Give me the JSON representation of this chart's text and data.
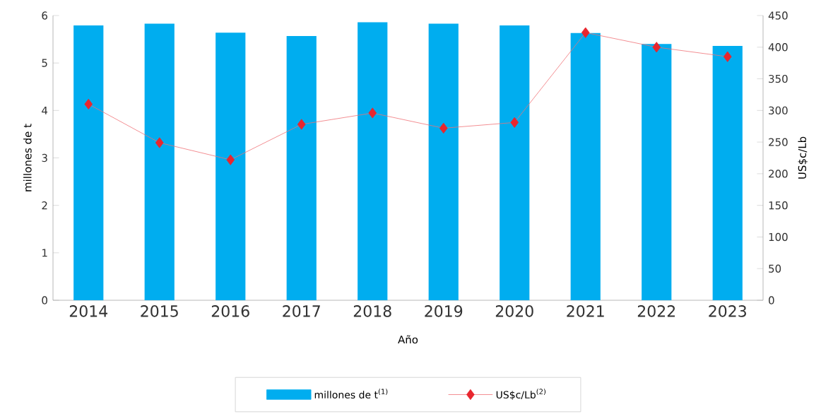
{
  "chart_data": {
    "type": "bar",
    "xlabel": "Año",
    "ylabel": "millones de t",
    "y2label": "US$c/Lb",
    "categories": [
      "2014",
      "2015",
      "2016",
      "2017",
      "2018",
      "2019",
      "2020",
      "2021",
      "2022",
      "2023"
    ],
    "series": [
      {
        "name": "millones de t$^{(1)}$",
        "color": "#00adef",
        "values": [
          5.79,
          5.83,
          5.64,
          5.57,
          5.86,
          5.83,
          5.79,
          5.63,
          5.4,
          5.36
        ]
      },
      {
        "name": "US$c/Lb$^{(2)}$",
        "type": "line",
        "axis": "y2",
        "color": "#e8262e",
        "marker": "diamond",
        "values": [
          310,
          249,
          222,
          278,
          296,
          272,
          281,
          423,
          400,
          385
        ]
      }
    ],
    "ylim": [
      0,
      6
    ],
    "yticks": [
      0,
      1,
      2,
      3,
      4,
      5,
      6
    ],
    "y2lim": [
      0,
      450
    ],
    "y2ticks": [
      0,
      50,
      100,
      150,
      200,
      250,
      300,
      350,
      400,
      450
    ],
    "grid": false,
    "legend": "bottom"
  }
}
